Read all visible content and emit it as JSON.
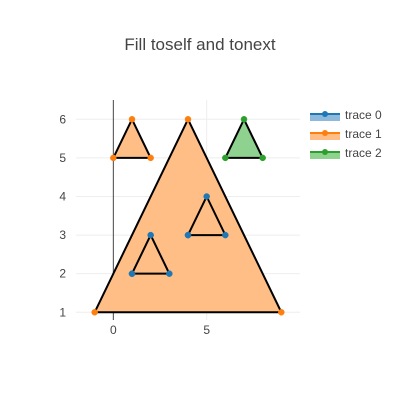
{
  "chart_data": {
    "type": "scatter",
    "title": "Fill toself and tonext",
    "xlabel": "",
    "ylabel": "",
    "xlim": [
      -2,
      10
    ],
    "ylim": [
      0.8,
      6.5
    ],
    "x_ticks": [
      0,
      5
    ],
    "y_ticks": [
      1,
      2,
      3,
      4,
      5,
      6
    ],
    "grid": true,
    "legend_position": "top-right",
    "series": [
      {
        "name": "trace 0",
        "color": "#1f77b4",
        "fill_color": "#8cb9dc",
        "line_color": "#000000",
        "mode": "lines+markers",
        "fill": "toself",
        "polygons": [
          {
            "x": [
              1,
              2,
              3,
              1
            ],
            "y": [
              2,
              3,
              2,
              2
            ]
          },
          {
            "x": [
              4,
              5,
              6,
              4
            ],
            "y": [
              3,
              4,
              3,
              3
            ]
          }
        ]
      },
      {
        "name": "trace 1",
        "color": "#ff7f0e",
        "fill_color": "#ffbe86",
        "line_color": "#000000",
        "mode": "markers",
        "fill": "toself",
        "polygons": [
          {
            "x": [
              -1,
              4,
              9
            ],
            "y": [
              1,
              6,
              1
            ]
          },
          {
            "x": [
              0,
              1,
              2
            ],
            "y": [
              5,
              6,
              5
            ]
          }
        ]
      },
      {
        "name": "trace 2",
        "color": "#2ca02c",
        "fill_color": "#8fd18f",
        "line_color": "#000000",
        "mode": "markers",
        "fill": "toself",
        "polygons": [
          {
            "x": [
              6,
              7,
              8
            ],
            "y": [
              5,
              6,
              5
            ]
          }
        ]
      }
    ]
  }
}
